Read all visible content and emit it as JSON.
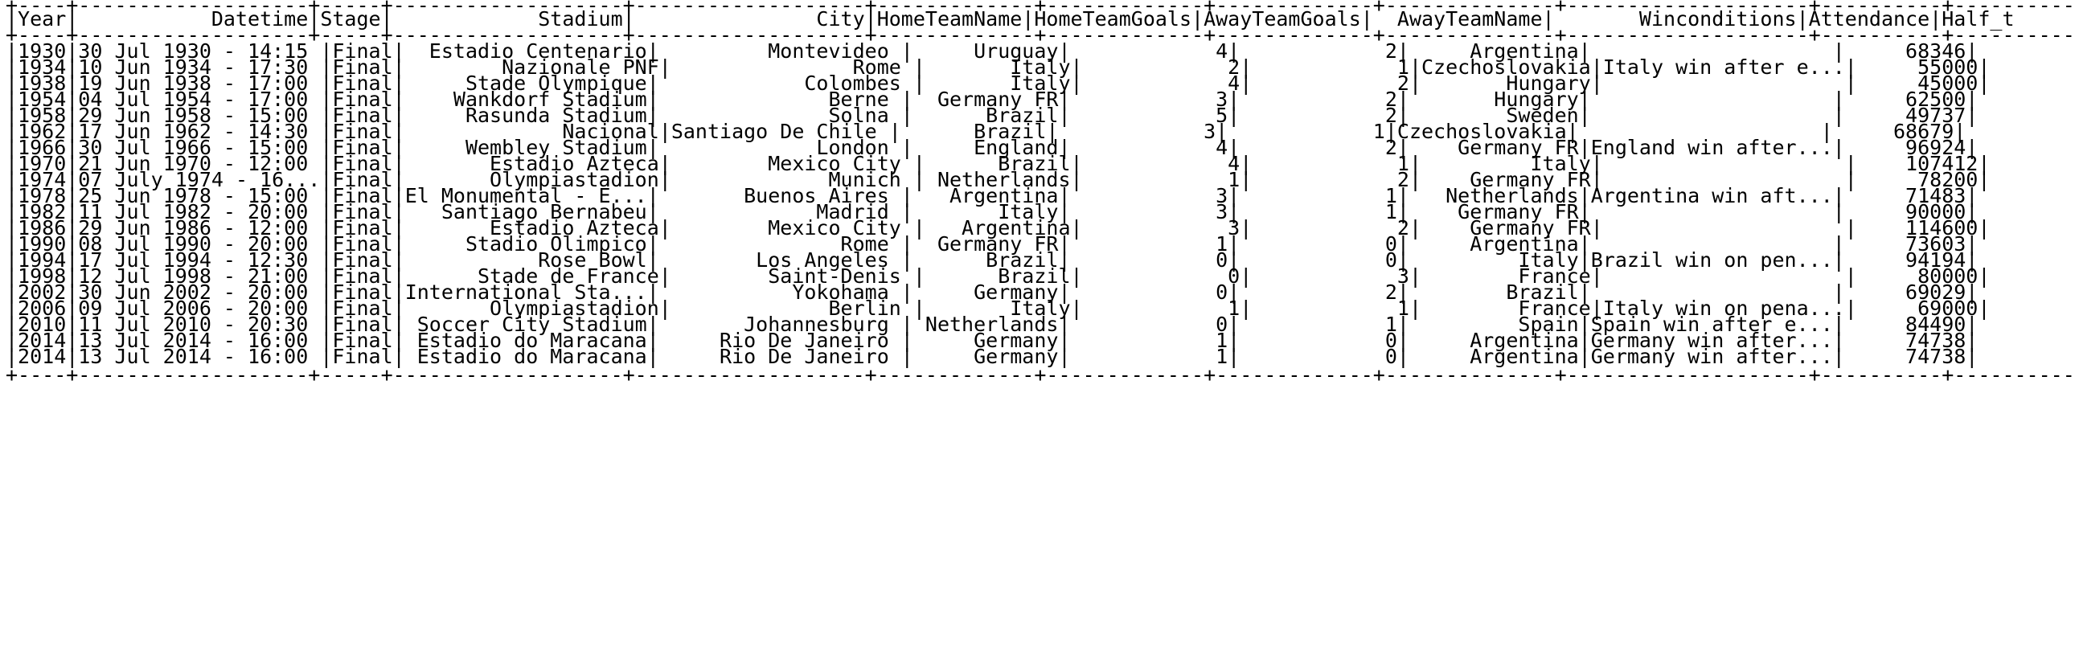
{
  "table": {
    "separator": "+----+-------------------+-----+-------------------+-------------------+-------------+-------------+-------------+--------------+--------------------+----------+----------",
    "header": "|Year|           Datetime|Stage|            Stadium|               City|HomeTeamName|HomeTeamGoals|AwayTeamGoals|  AwayTeamName|       Winconditions|Attendance|Half_t",
    "rows": [
      "|1930|30 Jul 1930 - 14:15 |Final|  Estadio Centenario|         Montevideo |     Uruguay|            4|            2|     Argentina|                    |     68346|",
      "|1934|10 Jun 1934 - 17:30 |Final|        Nazionale PNF|               Rome |       Italy|            2|            1|Czechoslovakia|Italy win after e...|     55000|",
      "|1938|19 Jun 1938 - 17:00 |Final|     Stade Olympique|            Colombes |       Italy|            4|            2|       Hungary|                    |     45000|",
      "|1954|04 Jul 1954 - 17:00 |Final|    Wankdorf Stadium|              Berne |  Germany FR|            3|            2|       Hungary|                    |     62500|",
      "|1958|29 Jun 1958 - 15:00 |Final|     Rasunda Stadium|              Solna |      Brazil|            5|            2|        Sweden|                    |     49737|",
      "|1962|17 Jun 1962 - 14:30 |Final|             Nacional|Santiago De Chile |      Brazil|            3|            1|Czechoslovakia|                    |     68679|",
      "|1966|30 Jul 1966 - 15:00 |Final|     Wembley Stadium|             London |     England|            4|            2|    Germany FR|England win after...|     96924|",
      "|1970|21 Jun 1970 - 12:00 |Final|       Estadio Azteca|        Mexico City |      Brazil|            4|            1|         Italy|                    |    107412|",
      "|1974|07 July 1974 - 16...|Final|       Olympiastadion|             Munich | Netherlands|            1|            2|    Germany FR|                    |     78200|",
      "|1978|25 Jun 1978 - 15:00 |Final|El Monumental - E...|       Buenos Aires |   Argentina|            3|            1|   Netherlands|Argentina win aft...|     71483|",
      "|1982|11 Jul 1982 - 20:00 |Final|   Santiago Bernabeu|             Madrid |       Italy|            3|            1|    Germany FR|                    |     90000|",
      "|1986|29 Jun 1986 - 12:00 |Final|       Estadio Azteca|        Mexico City |   Argentina|            3|            2|    Germany FR|                    |    114600|",
      "|1990|08 Jul 1990 - 20:00 |Final|     Stadio Olimpico|               Rome |  Germany FR|            1|            0|     Argentina|                    |     73603|",
      "|1994|17 Jul 1994 - 12:30 |Final|           Rose Bowl|        Los Angeles |      Brazil|            0|            0|         Italy|Brazil win on pen...|     94194|",
      "|1998|12 Jul 1998 - 21:00 |Final|      Stade de France|        Saint-Denis |      Brazil|            0|            3|        France|                    |     80000|",
      "|2002|30 Jun 2002 - 20:00 |Final|International Sta...|           Yokohama |     Germany|            0|            2|        Brazil|                    |     69029|",
      "|2006|09 Jul 2006 - 20:00 |Final|       Olympiastadion|             Berlin |       Italy|            1|            1|        France|Italy win on pena...|     69000|",
      "|2010|11 Jul 2010 - 20:30 |Final| Soccer City Stadium|       Johannesburg | Netherlands|            0|            1|         Spain|Spain win after e...|     84490|",
      "|2014|13 Jul 2014 - 16:00 |Final| Estadio do Maracana|     Rio De Janeiro |     Germany|            1|            0|     Argentina|Germany win after...|     74738|",
      "|2014|13 Jul 2014 - 16:00 |Final| Estadio do Maracana|     Rio De Janeiro |     Germany|            1|            0|     Argentina|Germany win after...|     74738|"
    ]
  }
}
